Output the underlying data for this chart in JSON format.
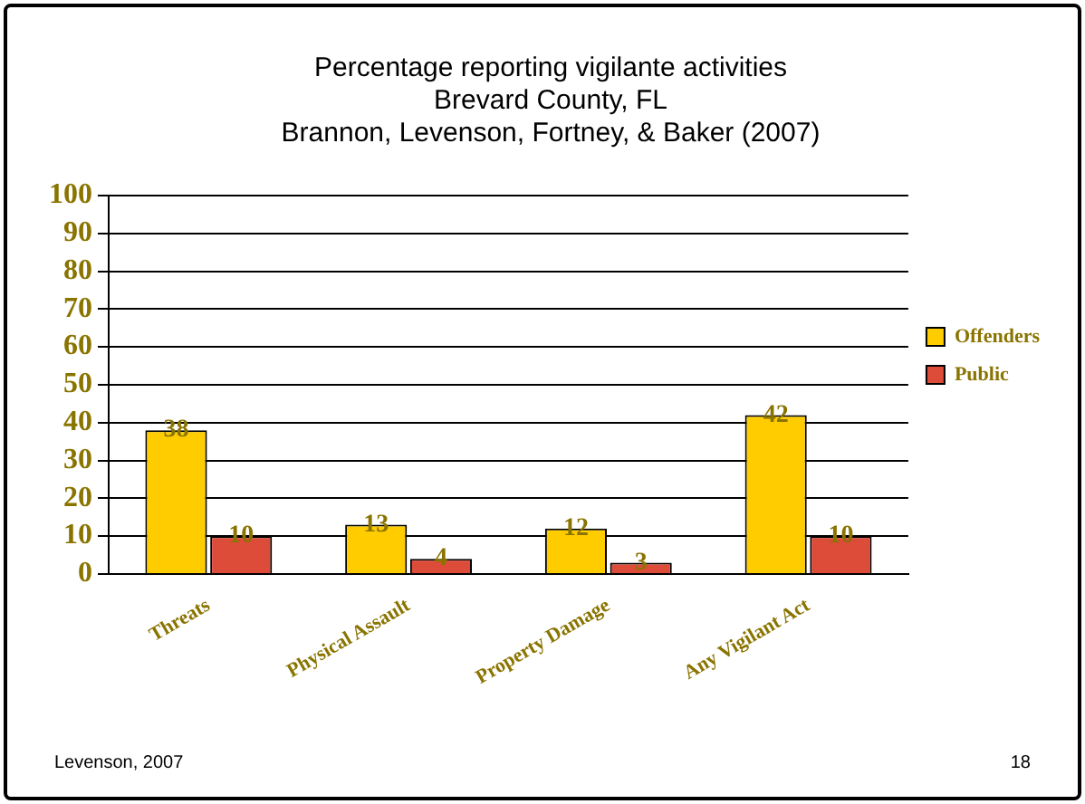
{
  "chart_data": {
    "type": "bar",
    "title": [
      "Percentage reporting vigilante activities",
      "Brevard County, FL",
      "Brannon, Levenson, Fortney, & Baker (2007)"
    ],
    "categories": [
      "Threats",
      "Physical Assault",
      "Property Damage",
      "Any Vigilant Act"
    ],
    "series": [
      {
        "name": "Offenders",
        "color": "#ffcc00",
        "values": [
          38,
          13,
          12,
          42
        ]
      },
      {
        "name": "Public",
        "color": "#dd4b39",
        "values": [
          10,
          4,
          3,
          10
        ]
      }
    ],
    "ylim": [
      0,
      100
    ],
    "yticks": [
      0,
      10,
      20,
      30,
      40,
      50,
      60,
      70,
      80,
      90,
      100
    ],
    "grid": "y",
    "legend": "right",
    "data_labels": true,
    "annotations": [
      "Levenson, 2007",
      "18"
    ]
  }
}
